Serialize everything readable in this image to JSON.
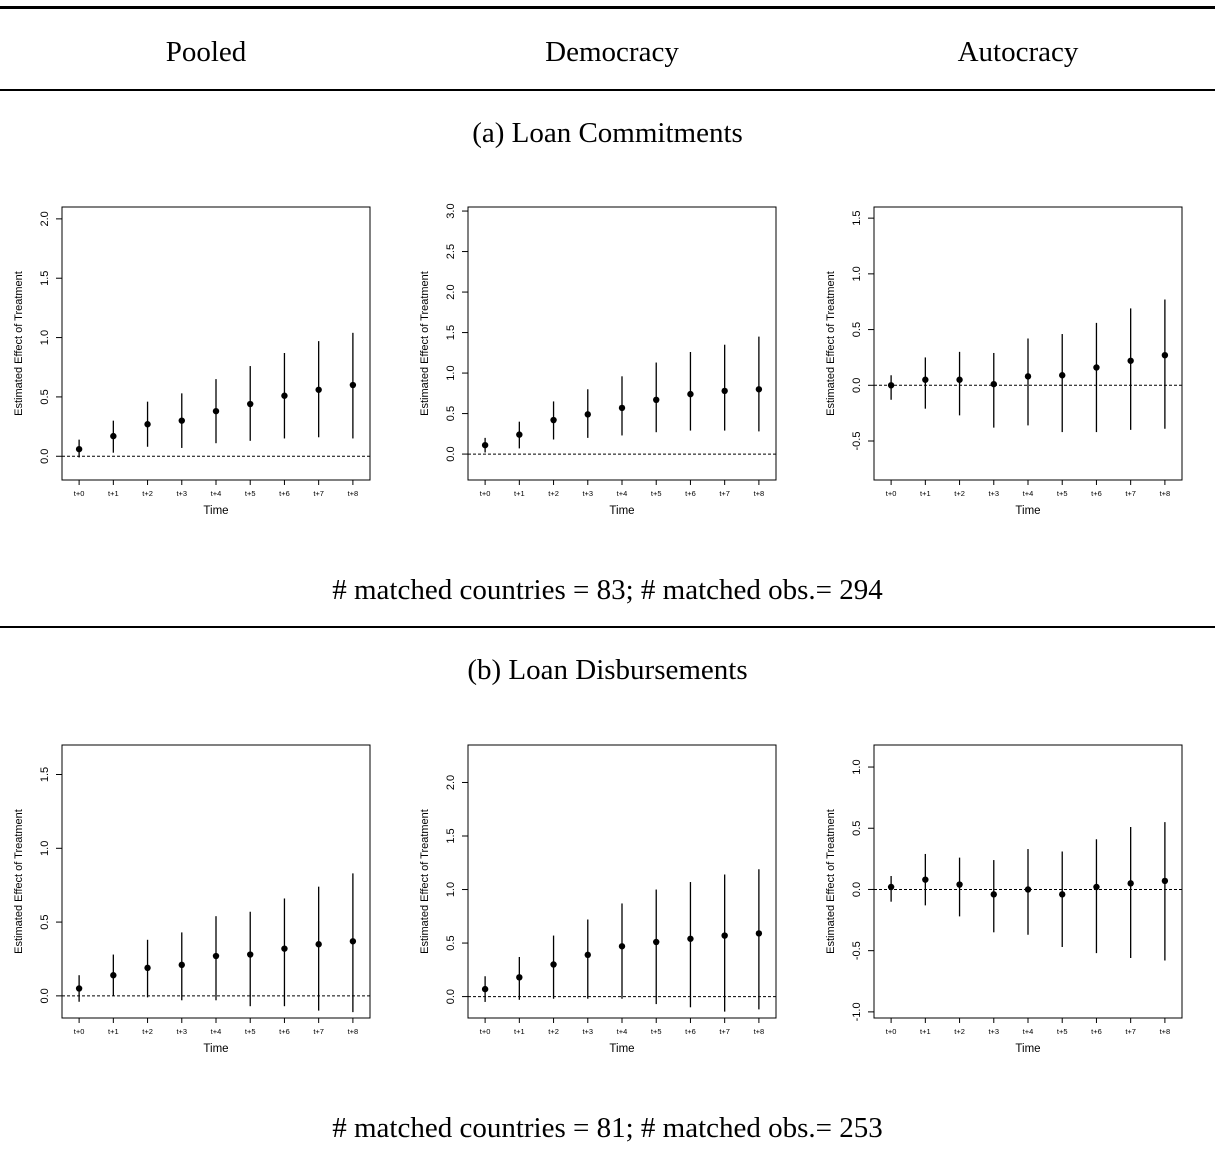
{
  "columns": [
    "Pooled",
    "Democracy",
    "Autocracy"
  ],
  "sections": [
    {
      "title": "(a) Loan Commitments",
      "footnote": "# matched countries = 83; # matched obs.= 294"
    },
    {
      "title": "(b) Loan Disbursements",
      "footnote": "# matched countries = 81; # matched obs.= 253"
    }
  ],
  "chart_data": [
    {
      "type": "scatter",
      "panel": "(a) Loan Commitments — Pooled",
      "xlabel": "Time",
      "ylabel": "Estimated Effect of Treatment",
      "categories": [
        "t+0",
        "t+1",
        "t+2",
        "t+3",
        "t+4",
        "t+5",
        "t+6",
        "t+7",
        "t+8"
      ],
      "values": [
        0.06,
        0.17,
        0.27,
        0.3,
        0.38,
        0.44,
        0.51,
        0.56,
        0.6
      ],
      "lower": [
        -0.01,
        0.03,
        0.08,
        0.07,
        0.11,
        0.13,
        0.15,
        0.16,
        0.15
      ],
      "upper": [
        0.14,
        0.3,
        0.46,
        0.53,
        0.65,
        0.76,
        0.87,
        0.97,
        1.04
      ],
      "ylim": [
        -0.2,
        2.1
      ],
      "yticks": [
        "0.0",
        "0.5",
        "1.0",
        "1.5",
        "2.0"
      ],
      "reference_line": 0
    },
    {
      "type": "scatter",
      "panel": "(a) Loan Commitments — Democracy",
      "xlabel": "Time",
      "ylabel": "Estimated Effect of Treatment",
      "categories": [
        "t+0",
        "t+1",
        "t+2",
        "t+3",
        "t+4",
        "t+5",
        "t+6",
        "t+7",
        "t+8"
      ],
      "values": [
        0.11,
        0.24,
        0.42,
        0.49,
        0.57,
        0.67,
        0.74,
        0.78,
        0.8
      ],
      "lower": [
        0.02,
        0.07,
        0.18,
        0.2,
        0.23,
        0.27,
        0.29,
        0.29,
        0.28
      ],
      "upper": [
        0.2,
        0.4,
        0.65,
        0.8,
        0.96,
        1.13,
        1.26,
        1.35,
        1.45
      ],
      "ylim": [
        -0.32,
        3.05
      ],
      "yticks": [
        "0.0",
        "0.5",
        "1.0",
        "1.5",
        "2.0",
        "2.5",
        "3.0"
      ],
      "reference_line": 0
    },
    {
      "type": "scatter",
      "panel": "(a) Loan Commitments — Autocracy",
      "xlabel": "Time",
      "ylabel": "Estimated Effect of Treatment",
      "categories": [
        "t+0",
        "t+1",
        "t+2",
        "t+3",
        "t+4",
        "t+5",
        "t+6",
        "t+7",
        "t+8"
      ],
      "values": [
        0.0,
        0.05,
        0.05,
        0.01,
        0.08,
        0.09,
        0.16,
        0.22,
        0.27
      ],
      "lower": [
        -0.13,
        -0.21,
        -0.27,
        -0.38,
        -0.36,
        -0.42,
        -0.42,
        -0.4,
        -0.39
      ],
      "upper": [
        0.09,
        0.25,
        0.3,
        0.29,
        0.42,
        0.46,
        0.56,
        0.69,
        0.77
      ],
      "ylim": [
        -0.85,
        1.6
      ],
      "yticks": [
        "-0.5",
        "0.0",
        "0.5",
        "1.0",
        "1.5"
      ],
      "reference_line": 0
    },
    {
      "type": "scatter",
      "panel": "(b) Loan Disbursements — Pooled",
      "xlabel": "Time",
      "ylabel": "Estimated Effect of Treatment",
      "categories": [
        "t+0",
        "t+1",
        "t+2",
        "t+3",
        "t+4",
        "t+5",
        "t+6",
        "t+7",
        "t+8"
      ],
      "values": [
        0.05,
        0.14,
        0.19,
        0.21,
        0.27,
        0.28,
        0.32,
        0.35,
        0.37
      ],
      "lower": [
        -0.04,
        0.0,
        -0.01,
        -0.03,
        -0.03,
        -0.07,
        -0.07,
        -0.1,
        -0.11
      ],
      "upper": [
        0.14,
        0.28,
        0.38,
        0.43,
        0.54,
        0.57,
        0.66,
        0.74,
        0.83
      ],
      "ylim": [
        -0.15,
        1.7
      ],
      "yticks": [
        "0.0",
        "0.5",
        "1.0",
        "1.5"
      ],
      "reference_line": 0
    },
    {
      "type": "scatter",
      "panel": "(b) Loan Disbursements — Democracy",
      "xlabel": "Time",
      "ylabel": "Estimated Effect of Treatment",
      "categories": [
        "t+0",
        "t+1",
        "t+2",
        "t+3",
        "t+4",
        "t+5",
        "t+6",
        "t+7",
        "t+8"
      ],
      "values": [
        0.07,
        0.18,
        0.3,
        0.39,
        0.47,
        0.51,
        0.54,
        0.57,
        0.59
      ],
      "lower": [
        -0.05,
        -0.03,
        -0.02,
        -0.02,
        -0.02,
        -0.07,
        -0.1,
        -0.14,
        -0.12
      ],
      "upper": [
        0.19,
        0.37,
        0.57,
        0.72,
        0.87,
        1.0,
        1.07,
        1.14,
        1.19
      ],
      "ylim": [
        -0.2,
        2.35
      ],
      "yticks": [
        "0.0",
        "0.5",
        "1.0",
        "1.5",
        "2.0"
      ],
      "reference_line": 0
    },
    {
      "type": "scatter",
      "panel": "(b) Loan Disbursements — Autocracy",
      "xlabel": "Time",
      "ylabel": "Estimated Effect of Treatment",
      "categories": [
        "t+0",
        "t+1",
        "t+2",
        "t+3",
        "t+4",
        "t+5",
        "t+6",
        "t+7",
        "t+8"
      ],
      "values": [
        0.02,
        0.08,
        0.04,
        -0.04,
        0.0,
        -0.04,
        0.02,
        0.05,
        0.07
      ],
      "lower": [
        -0.1,
        -0.13,
        -0.22,
        -0.35,
        -0.37,
        -0.47,
        -0.52,
        -0.56,
        -0.58
      ],
      "upper": [
        0.11,
        0.29,
        0.26,
        0.24,
        0.33,
        0.31,
        0.41,
        0.51,
        0.55
      ],
      "ylim": [
        -1.05,
        1.18
      ],
      "yticks": [
        "-1.0",
        "-0.5",
        "0.0",
        "0.5",
        "1.0"
      ],
      "reference_line": 0
    }
  ]
}
